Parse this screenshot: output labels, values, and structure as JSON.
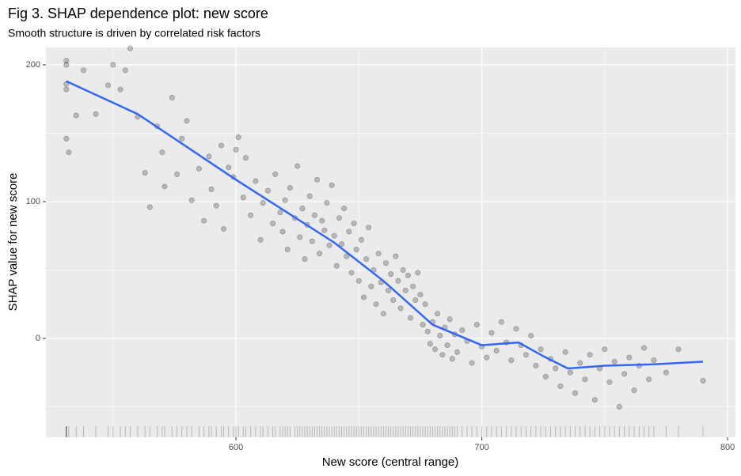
{
  "chart_data": {
    "type": "scatter",
    "title": "Fig 3. SHAP dependence plot: new score",
    "subtitle": "Smooth structure is driven by correlated risk factors",
    "x_label": "New score (central range)",
    "y_label": "SHAP value for new score",
    "xlim": [
      522.7,
      803.2
    ],
    "ylim": [
      -72.3,
      212.7
    ],
    "xticks": [
      600,
      700,
      800
    ],
    "yticks": [
      0,
      100,
      200
    ],
    "x_minor_grid": [
      550,
      650,
      750
    ],
    "y_minor_grid": [
      -50,
      50,
      150
    ],
    "grid": true,
    "rug": true,
    "points": {
      "color": "#000000",
      "alpha": 0.22,
      "x": [
        531,
        531,
        531,
        532,
        531,
        531,
        535,
        538,
        543,
        548,
        550,
        553,
        555,
        557,
        560,
        563,
        565,
        568,
        570,
        571,
        574,
        576,
        578,
        580,
        582,
        585,
        587,
        589,
        590,
        592,
        594,
        595,
        597,
        599,
        600,
        601,
        603,
        604,
        606,
        608,
        610,
        611,
        613,
        615,
        616,
        618,
        619,
        620,
        621,
        622,
        624,
        625,
        626,
        627,
        628,
        629,
        630,
        631,
        632,
        633,
        634,
        635,
        636,
        637,
        638,
        639,
        640,
        641,
        642,
        643,
        644,
        645,
        646,
        647,
        648,
        649,
        650,
        651,
        652,
        653,
        654,
        655,
        656,
        657,
        658,
        659,
        660,
        661,
        662,
        663,
        664,
        665,
        666,
        667,
        668,
        669,
        670,
        671,
        672,
        673,
        674,
        675,
        676,
        677,
        678,
        679,
        680,
        681,
        682,
        683,
        684,
        685,
        686,
        687,
        688,
        689,
        690,
        692,
        694,
        696,
        698,
        700,
        702,
        704,
        706,
        708,
        710,
        712,
        714,
        716,
        718,
        720,
        722,
        724,
        726,
        728,
        730,
        732,
        734,
        736,
        738,
        740,
        742,
        744,
        746,
        748,
        750,
        752,
        754,
        756,
        758,
        760,
        762,
        764,
        766,
        768,
        770,
        775,
        780,
        790
      ],
      "y": [
        203,
        186,
        146,
        136,
        182,
        200,
        163,
        196,
        164,
        185,
        200,
        182,
        196,
        212,
        162,
        121,
        96,
        155,
        136,
        111,
        176,
        120,
        146,
        159,
        101,
        124,
        86,
        133,
        109,
        97,
        141,
        80,
        125,
        118,
        138,
        147,
        103,
        132,
        90,
        115,
        72,
        99,
        108,
        84,
        120,
        92,
        78,
        101,
        65,
        110,
        88,
        126,
        74,
        95,
        58,
        83,
        104,
        71,
        90,
        116,
        62,
        86,
        79,
        99,
        68,
        112,
        75,
        53,
        88,
        69,
        95,
        60,
        78,
        48,
        84,
        65,
        42,
        72,
        30,
        58,
        81,
        38,
        50,
        25,
        62,
        41,
        18,
        55,
        35,
        47,
        28,
        60,
        42,
        22,
        50,
        35,
        46,
        15,
        38,
        28,
        48,
        32,
        10,
        25,
        5,
        -4,
        12,
        -8,
        18,
        2,
        -12,
        8,
        -5,
        14,
        -15,
        3,
        -10,
        6,
        -2,
        -18,
        10,
        -6,
        -14,
        4,
        -9,
        12,
        -3,
        -16,
        7,
        -5,
        -12,
        2,
        -20,
        -8,
        -28,
        -15,
        -22,
        -35,
        -10,
        -25,
        -40,
        -18,
        -30,
        -12,
        -45,
        -22,
        -8,
        -32,
        -17,
        -50,
        -26,
        -14,
        -38,
        -20,
        -7,
        -30,
        -16,
        -25,
        -8,
        -31
      ]
    },
    "smooth": {
      "color": "#3366ff",
      "x": [
        531,
        560,
        600,
        620,
        640,
        660,
        680,
        700,
        715,
        725,
        735,
        750,
        770,
        790
      ],
      "y": [
        188,
        164,
        116,
        93,
        70,
        42,
        10,
        -5,
        -3,
        -13,
        -22,
        -20,
        -19,
        -17
      ]
    }
  }
}
